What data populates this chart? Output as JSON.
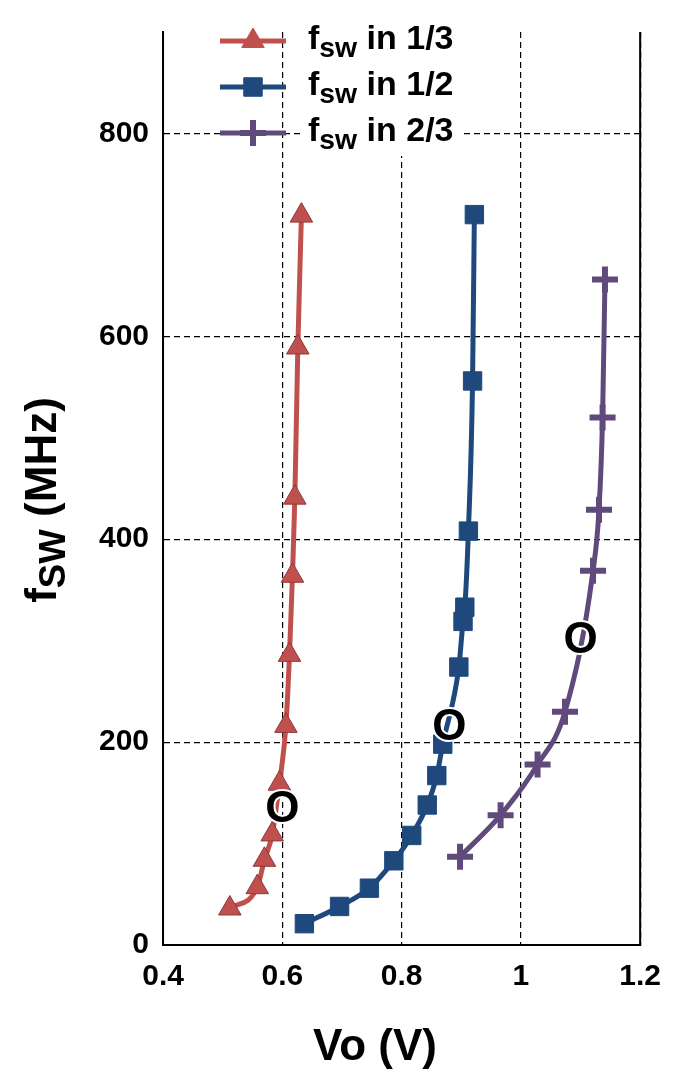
{
  "chart_data": {
    "type": "line",
    "xlabel": "Vo (V)",
    "ylabel": "f$_{SW}$  (MHz)",
    "xlim": [
      0.4,
      1.2
    ],
    "xticks": [
      0.4,
      0.6,
      0.8,
      1,
      1.2
    ],
    "ylim": [
      0,
      900
    ],
    "yticks": [
      0,
      200,
      400,
      600,
      800
    ],
    "grid": true,
    "legend": "top left",
    "line_style": "solid",
    "series": [
      {
        "name": "f$_{sw}$  in 1/3",
        "color": "#c0504d",
        "marker": "triangle",
        "x": [
          0.512,
          0.558,
          0.57,
          0.583,
          0.589,
          0.595,
          0.606,
          0.612,
          0.617,
          0.621,
          0.626,
          0.632
        ],
        "values": [
          36,
          57,
          84,
          109,
          null,
          159,
          216,
          286,
          364,
          441,
          589,
          719
        ]
      },
      {
        "name": "f$_{sw}$  in 1/2",
        "color": "#1f497d",
        "marker": "square",
        "x": [
          0.637,
          0.696,
          0.746,
          0.787,
          0.817,
          0.843,
          0.859,
          0.869,
          0.873,
          0.896,
          0.903,
          0.906,
          0.912,
          0.919,
          0.922
        ],
        "values": [
          21,
          38,
          56,
          83,
          108,
          138,
          167,
          198,
          null,
          274,
          319,
          333,
          408,
          556,
          720
        ]
      },
      {
        "name": "f$_{sw}$  in 2/3",
        "color": "#604a7b",
        "marker": "cross",
        "x": [
          0.898,
          0.966,
          1.028,
          1.074,
          1.102,
          1.121,
          1.131,
          1.137,
          1.141
        ],
        "values": [
          87,
          128,
          178,
          230,
          null,
          369,
          429,
          520,
          656
        ]
      }
    ],
    "annotations": [
      {
        "text": "O",
        "x": 0.6,
        "y": 133
      },
      {
        "text": "O",
        "x": 0.88,
        "y": 214
      },
      {
        "text": "O",
        "x": 1.1,
        "y": 300
      }
    ]
  }
}
